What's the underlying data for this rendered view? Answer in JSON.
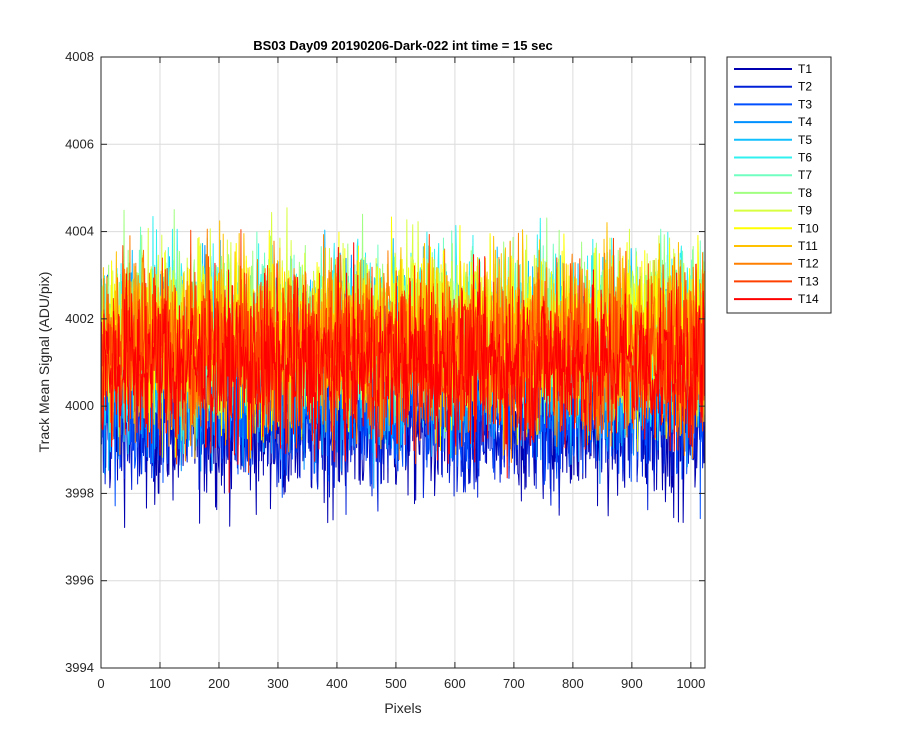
{
  "chart_data": {
    "type": "line",
    "title": "BS03 Day09 20190206-Dark-022 int time = 15 sec",
    "xlabel": "Pixels",
    "ylabel": "Track Mean Signal (ADU/pix)",
    "xlim": [
      0,
      1024
    ],
    "ylim": [
      3994,
      4008
    ],
    "x_ticks": [
      0,
      100,
      200,
      300,
      400,
      500,
      600,
      700,
      800,
      900,
      1000
    ],
    "y_ticks": [
      3994,
      3996,
      3998,
      4000,
      4002,
      4004,
      4006,
      4008
    ],
    "grid": true,
    "legend_position": "outside-top-right",
    "x_points": 1024,
    "series": [
      {
        "name": "T1",
        "color": "#0000b0",
        "mean": 3999.6,
        "spread": 0.9
      },
      {
        "name": "T2",
        "color": "#0020d8",
        "mean": 3999.9,
        "spread": 0.9
      },
      {
        "name": "T3",
        "color": "#0050ff",
        "mean": 4000.3,
        "spread": 0.95
      },
      {
        "name": "T4",
        "color": "#0090ff",
        "mean": 4000.8,
        "spread": 1.0
      },
      {
        "name": "T5",
        "color": "#10c0ff",
        "mean": 4001.3,
        "spread": 1.0
      },
      {
        "name": "T6",
        "color": "#30f0f0",
        "mean": 4001.6,
        "spread": 1.0
      },
      {
        "name": "T7",
        "color": "#70ffc0",
        "mean": 4001.7,
        "spread": 0.95
      },
      {
        "name": "T8",
        "color": "#a0ff80",
        "mean": 4001.8,
        "spread": 0.95
      },
      {
        "name": "T9",
        "color": "#d8ff40",
        "mean": 4001.7,
        "spread": 0.95
      },
      {
        "name": "T10",
        "color": "#ffff00",
        "mean": 4001.6,
        "spread": 1.0
      },
      {
        "name": "T11",
        "color": "#ffc000",
        "mean": 4001.5,
        "spread": 1.0
      },
      {
        "name": "T12",
        "color": "#ff8000",
        "mean": 4001.4,
        "spread": 1.05
      },
      {
        "name": "T13",
        "color": "#ff4000",
        "mean": 4001.2,
        "spread": 1.0
      },
      {
        "name": "T14",
        "color": "#ff0000",
        "mean": 4000.9,
        "spread": 0.95
      }
    ]
  }
}
